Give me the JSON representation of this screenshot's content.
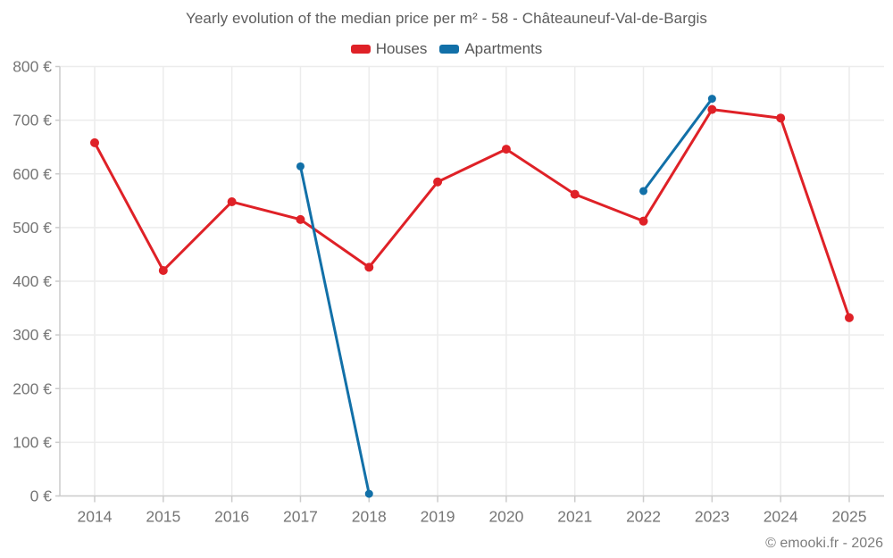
{
  "header": {
    "title": "Yearly evolution of the median price per m² - 58 - Châteauneuf-Val-de-Bargis"
  },
  "footer": {
    "credit": "© emooki.fr - 2026"
  },
  "chart_data": {
    "type": "line",
    "title": "Yearly evolution of the median price per m² - 58 - Châteauneuf-Val-de-Bargis",
    "x": [
      2014,
      2015,
      2016,
      2017,
      2018,
      2019,
      2020,
      2021,
      2022,
      2023,
      2024,
      2025
    ],
    "xtick_labels": [
      "2014",
      "2015",
      "2016",
      "2017",
      "2018",
      "2019",
      "2020",
      "2021",
      "2022",
      "2023",
      "2024",
      "2025"
    ],
    "ylim": [
      0,
      800
    ],
    "ytick_values": [
      0,
      100,
      200,
      300,
      400,
      500,
      600,
      700,
      800
    ],
    "ytick_labels": [
      "0 €",
      "100 €",
      "200 €",
      "300 €",
      "400 €",
      "500 €",
      "600 €",
      "700 €",
      "800 €"
    ],
    "grid": true,
    "legend_position": "top",
    "series": [
      {
        "name": "Houses",
        "color": "#df2127",
        "values": [
          658,
          420,
          548,
          515,
          426,
          585,
          646,
          562,
          512,
          720,
          704,
          332
        ]
      },
      {
        "name": "Apartments",
        "color": "#1270a8",
        "values": [
          null,
          null,
          null,
          614,
          4,
          null,
          null,
          null,
          568,
          740,
          null,
          null
        ]
      }
    ]
  }
}
